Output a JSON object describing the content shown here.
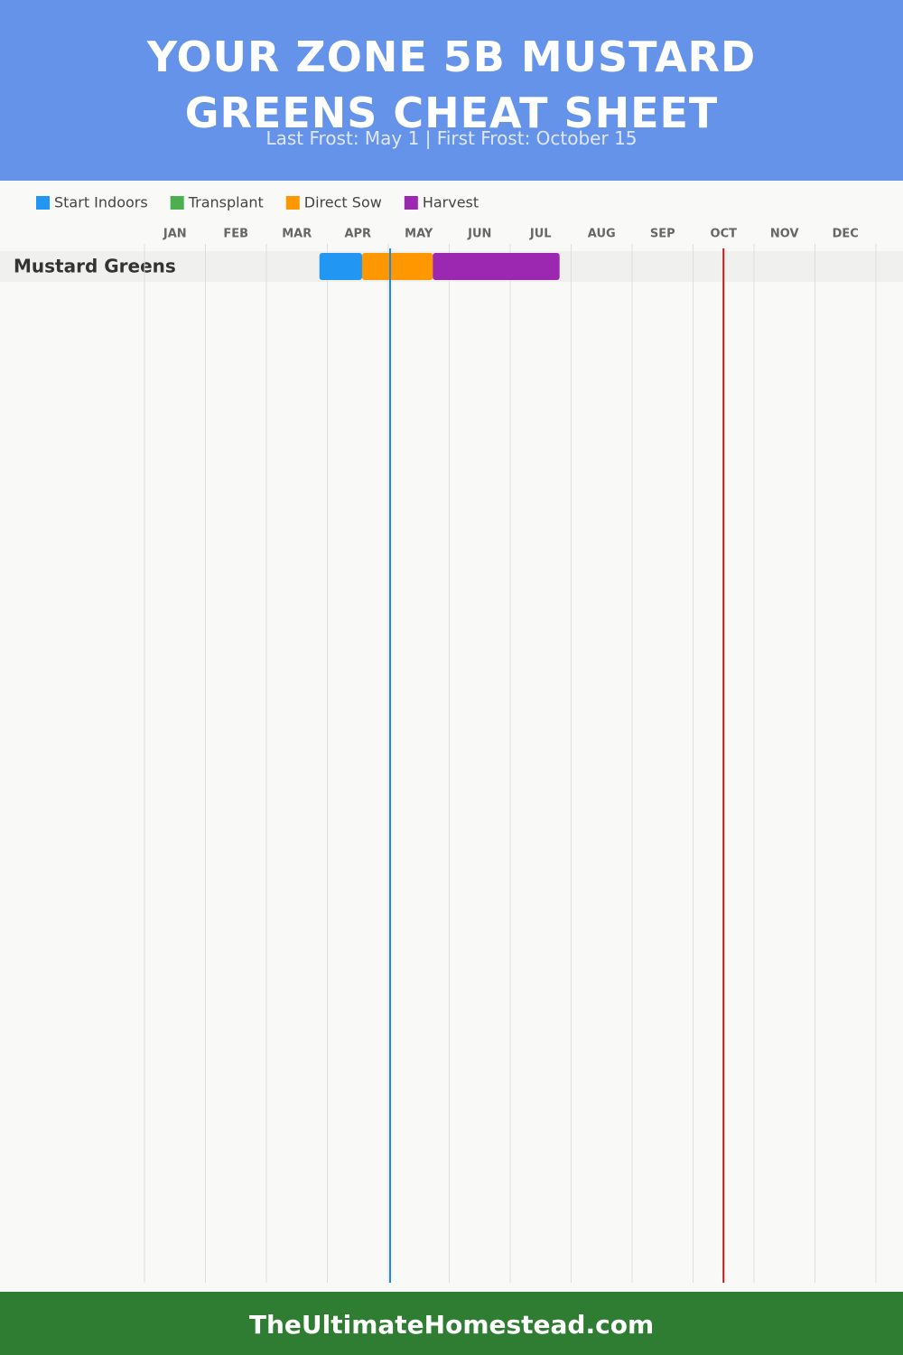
{
  "chart_data": {
    "type": "gantt",
    "title": "YOUR ZONE 5B MUSTARD GREENS CHEAT SHEET",
    "subtitle": "Last Frost: May 1 | First Frost: October 15",
    "months": [
      "JAN",
      "FEB",
      "MAR",
      "APR",
      "MAY",
      "JUN",
      "JUL",
      "AUG",
      "SEP",
      "OCT",
      "NOV",
      "DEC"
    ],
    "xlim": [
      0,
      12
    ],
    "xticks": [
      0,
      1,
      2,
      3,
      4,
      5,
      6,
      7,
      8,
      9,
      10,
      11,
      12
    ],
    "grid": true,
    "categories": [
      "Mustard Greens"
    ],
    "series": [
      {
        "name": "Start Indoors",
        "color": "#2196f3",
        "values": [
          [
            2.87,
            3.57
          ]
        ]
      },
      {
        "name": "Transplant",
        "color": "#4caf50",
        "values": [
          null
        ]
      },
      {
        "name": "Direct Sow",
        "color": "#ff9800",
        "values": [
          [
            3.57,
            4.73
          ]
        ]
      },
      {
        "name": "Harvest",
        "color": "#9c27b0",
        "values": [
          [
            4.73,
            6.81
          ]
        ]
      }
    ],
    "markers": [
      {
        "value": 4.03,
        "color": "#1e88e5"
      },
      {
        "value": 9.5,
        "color": "#b71c1c"
      }
    ]
  },
  "footer": "TheUltimateHomestead.com"
}
